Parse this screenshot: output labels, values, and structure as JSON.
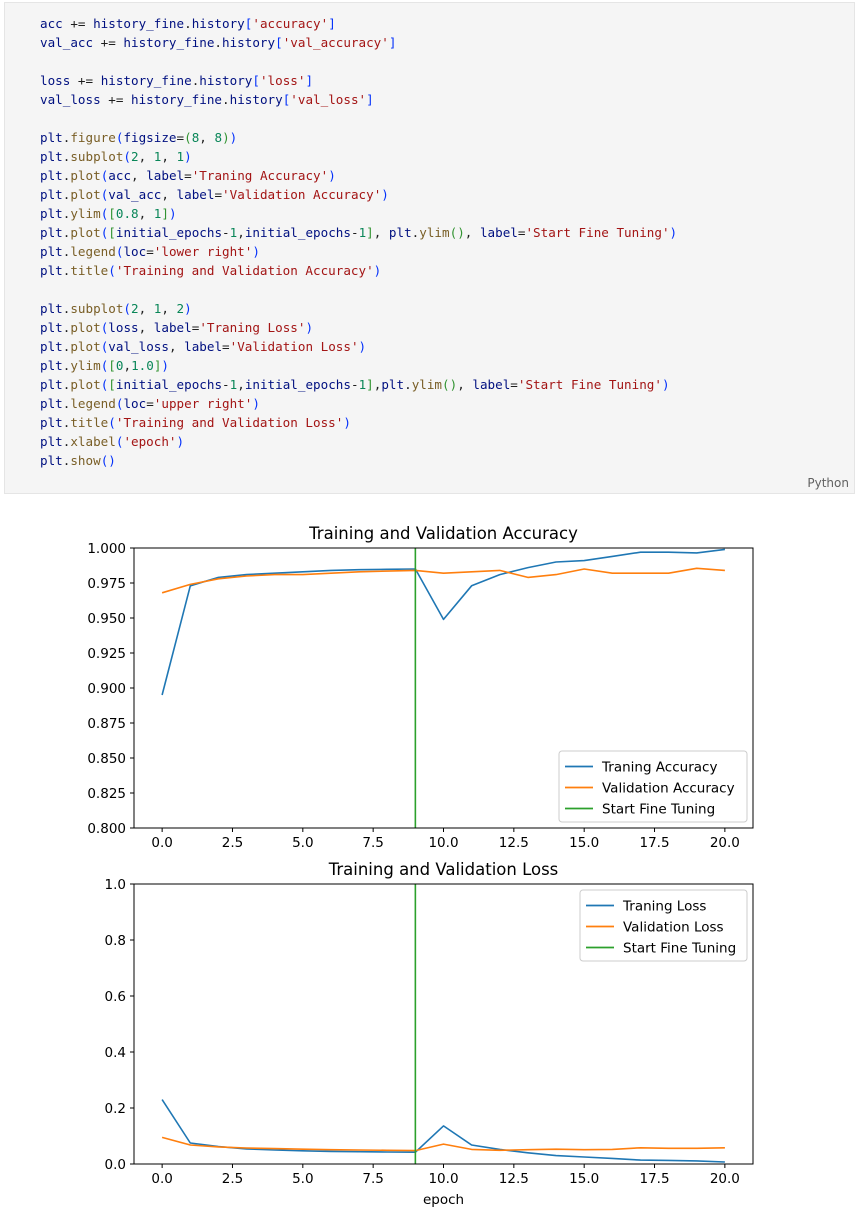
{
  "code_cell": {
    "language": "Python",
    "lines": [
      [
        [
          "var",
          "acc"
        ],
        [
          "op",
          " += "
        ],
        [
          "var",
          "history_fine"
        ],
        [
          "op",
          "."
        ],
        [
          "var",
          "history"
        ],
        [
          "br",
          "["
        ],
        [
          "str",
          "'accuracy'"
        ],
        [
          "br",
          "]"
        ]
      ],
      [
        [
          "var",
          "val_acc"
        ],
        [
          "op",
          " += "
        ],
        [
          "var",
          "history_fine"
        ],
        [
          "op",
          "."
        ],
        [
          "var",
          "history"
        ],
        [
          "br",
          "["
        ],
        [
          "str",
          "'val_accuracy'"
        ],
        [
          "br",
          "]"
        ]
      ],
      [],
      [
        [
          "var",
          "loss"
        ],
        [
          "op",
          " += "
        ],
        [
          "var",
          "history_fine"
        ],
        [
          "op",
          "."
        ],
        [
          "var",
          "history"
        ],
        [
          "br",
          "["
        ],
        [
          "str",
          "'loss'"
        ],
        [
          "br",
          "]"
        ]
      ],
      [
        [
          "var",
          "val_loss"
        ],
        [
          "op",
          " += "
        ],
        [
          "var",
          "history_fine"
        ],
        [
          "op",
          "."
        ],
        [
          "var",
          "history"
        ],
        [
          "br",
          "["
        ],
        [
          "str",
          "'val_loss'"
        ],
        [
          "br",
          "]"
        ]
      ],
      [],
      [
        [
          "var",
          "plt"
        ],
        [
          "op",
          "."
        ],
        [
          "fn",
          "figure"
        ],
        [
          "br",
          "("
        ],
        [
          "var",
          "figsize"
        ],
        [
          "op",
          "="
        ],
        [
          "br2",
          "("
        ],
        [
          "num",
          "8"
        ],
        [
          "op",
          ", "
        ],
        [
          "num",
          "8"
        ],
        [
          "br2",
          ")"
        ],
        [
          "br",
          ")"
        ]
      ],
      [
        [
          "var",
          "plt"
        ],
        [
          "op",
          "."
        ],
        [
          "fn",
          "subplot"
        ],
        [
          "br",
          "("
        ],
        [
          "num",
          "2"
        ],
        [
          "op",
          ", "
        ],
        [
          "num",
          "1"
        ],
        [
          "op",
          ", "
        ],
        [
          "num",
          "1"
        ],
        [
          "br",
          ")"
        ]
      ],
      [
        [
          "var",
          "plt"
        ],
        [
          "op",
          "."
        ],
        [
          "fn",
          "plot"
        ],
        [
          "br",
          "("
        ],
        [
          "var",
          "acc"
        ],
        [
          "op",
          ", "
        ],
        [
          "var",
          "label"
        ],
        [
          "op",
          "="
        ],
        [
          "str",
          "'Traning Accuracy'"
        ],
        [
          "br",
          ")"
        ]
      ],
      [
        [
          "var",
          "plt"
        ],
        [
          "op",
          "."
        ],
        [
          "fn",
          "plot"
        ],
        [
          "br",
          "("
        ],
        [
          "var",
          "val_acc"
        ],
        [
          "op",
          ", "
        ],
        [
          "var",
          "label"
        ],
        [
          "op",
          "="
        ],
        [
          "str",
          "'Validation Accuracy'"
        ],
        [
          "br",
          ")"
        ]
      ],
      [
        [
          "var",
          "plt"
        ],
        [
          "op",
          "."
        ],
        [
          "fn",
          "ylim"
        ],
        [
          "br",
          "("
        ],
        [
          "br2",
          "["
        ],
        [
          "num",
          "0.8"
        ],
        [
          "op",
          ", "
        ],
        [
          "num",
          "1"
        ],
        [
          "br2",
          "]"
        ],
        [
          "br",
          ")"
        ]
      ],
      [
        [
          "var",
          "plt"
        ],
        [
          "op",
          "."
        ],
        [
          "fn",
          "plot"
        ],
        [
          "br",
          "("
        ],
        [
          "br2",
          "["
        ],
        [
          "var",
          "initial_epochs"
        ],
        [
          "op",
          "-"
        ],
        [
          "num",
          "1"
        ],
        [
          "op",
          ","
        ],
        [
          "var",
          "initial_epochs"
        ],
        [
          "op",
          "-"
        ],
        [
          "num",
          "1"
        ],
        [
          "br2",
          "]"
        ],
        [
          "op",
          ", "
        ],
        [
          "var",
          "plt"
        ],
        [
          "op",
          "."
        ],
        [
          "fn",
          "ylim"
        ],
        [
          "br2",
          "()"
        ],
        [
          "op",
          ", "
        ],
        [
          "var",
          "label"
        ],
        [
          "op",
          "="
        ],
        [
          "str",
          "'Start Fine Tuning'"
        ],
        [
          "br",
          ")"
        ]
      ],
      [
        [
          "var",
          "plt"
        ],
        [
          "op",
          "."
        ],
        [
          "fn",
          "legend"
        ],
        [
          "br",
          "("
        ],
        [
          "var",
          "loc"
        ],
        [
          "op",
          "="
        ],
        [
          "str",
          "'lower right'"
        ],
        [
          "br",
          ")"
        ]
      ],
      [
        [
          "var",
          "plt"
        ],
        [
          "op",
          "."
        ],
        [
          "fn",
          "title"
        ],
        [
          "br",
          "("
        ],
        [
          "str",
          "'Training and Validation Accuracy'"
        ],
        [
          "br",
          ")"
        ]
      ],
      [],
      [
        [
          "var",
          "plt"
        ],
        [
          "op",
          "."
        ],
        [
          "fn",
          "subplot"
        ],
        [
          "br",
          "("
        ],
        [
          "num",
          "2"
        ],
        [
          "op",
          ", "
        ],
        [
          "num",
          "1"
        ],
        [
          "op",
          ", "
        ],
        [
          "num",
          "2"
        ],
        [
          "br",
          ")"
        ]
      ],
      [
        [
          "var",
          "plt"
        ],
        [
          "op",
          "."
        ],
        [
          "fn",
          "plot"
        ],
        [
          "br",
          "("
        ],
        [
          "var",
          "loss"
        ],
        [
          "op",
          ", "
        ],
        [
          "var",
          "label"
        ],
        [
          "op",
          "="
        ],
        [
          "str",
          "'Traning Loss'"
        ],
        [
          "br",
          ")"
        ]
      ],
      [
        [
          "var",
          "plt"
        ],
        [
          "op",
          "."
        ],
        [
          "fn",
          "plot"
        ],
        [
          "br",
          "("
        ],
        [
          "var",
          "val_loss"
        ],
        [
          "op",
          ", "
        ],
        [
          "var",
          "label"
        ],
        [
          "op",
          "="
        ],
        [
          "str",
          "'Validation Loss'"
        ],
        [
          "br",
          ")"
        ]
      ],
      [
        [
          "var",
          "plt"
        ],
        [
          "op",
          "."
        ],
        [
          "fn",
          "ylim"
        ],
        [
          "br",
          "("
        ],
        [
          "br2",
          "["
        ],
        [
          "num",
          "0"
        ],
        [
          "op",
          ","
        ],
        [
          "num",
          "1.0"
        ],
        [
          "br2",
          "]"
        ],
        [
          "br",
          ")"
        ]
      ],
      [
        [
          "var",
          "plt"
        ],
        [
          "op",
          "."
        ],
        [
          "fn",
          "plot"
        ],
        [
          "br",
          "("
        ],
        [
          "br2",
          "["
        ],
        [
          "var",
          "initial_epochs"
        ],
        [
          "op",
          "-"
        ],
        [
          "num",
          "1"
        ],
        [
          "op",
          ","
        ],
        [
          "var",
          "initial_epochs"
        ],
        [
          "op",
          "-"
        ],
        [
          "num",
          "1"
        ],
        [
          "br2",
          "]"
        ],
        [
          "op",
          ","
        ],
        [
          "var",
          "plt"
        ],
        [
          "op",
          "."
        ],
        [
          "fn",
          "ylim"
        ],
        [
          "br2",
          "()"
        ],
        [
          "op",
          ", "
        ],
        [
          "var",
          "label"
        ],
        [
          "op",
          "="
        ],
        [
          "str",
          "'Start Fine Tuning'"
        ],
        [
          "br",
          ")"
        ]
      ],
      [
        [
          "var",
          "plt"
        ],
        [
          "op",
          "."
        ],
        [
          "fn",
          "legend"
        ],
        [
          "br",
          "("
        ],
        [
          "var",
          "loc"
        ],
        [
          "op",
          "="
        ],
        [
          "str",
          "'upper right'"
        ],
        [
          "br",
          ")"
        ]
      ],
      [
        [
          "var",
          "plt"
        ],
        [
          "op",
          "."
        ],
        [
          "fn",
          "title"
        ],
        [
          "br",
          "("
        ],
        [
          "str",
          "'Training and Validation Loss'"
        ],
        [
          "br",
          ")"
        ]
      ],
      [
        [
          "var",
          "plt"
        ],
        [
          "op",
          "."
        ],
        [
          "fn",
          "xlabel"
        ],
        [
          "br",
          "("
        ],
        [
          "str",
          "'epoch'"
        ],
        [
          "br",
          ")"
        ]
      ],
      [
        [
          "var",
          "plt"
        ],
        [
          "op",
          "."
        ],
        [
          "fn",
          "show"
        ],
        [
          "br",
          "()"
        ]
      ]
    ]
  },
  "colors": {
    "train": "#1f77b4",
    "val": "#ff7f0e",
    "fine_tune": "#2ca02c"
  },
  "chart_data": [
    {
      "type": "line",
      "title": "Training and Validation Accuracy",
      "xlabel": "",
      "ylabel": "",
      "xlim": [
        -1,
        21
      ],
      "ylim": [
        0.8,
        1.0
      ],
      "xticks": [
        0.0,
        2.5,
        5.0,
        7.5,
        10.0,
        12.5,
        15.0,
        17.5,
        20.0
      ],
      "xtick_labels": [
        "0.0",
        "2.5",
        "5.0",
        "7.5",
        "10.0",
        "12.5",
        "15.0",
        "17.5",
        "20.0"
      ],
      "yticks": [
        0.8,
        0.825,
        0.85,
        0.875,
        0.9,
        0.925,
        0.95,
        0.975,
        1.0
      ],
      "ytick_labels": [
        "0.800",
        "0.825",
        "0.850",
        "0.875",
        "0.900",
        "0.925",
        "0.950",
        "0.975",
        "1.000"
      ],
      "legend_loc": "lower right",
      "x": [
        0,
        1,
        2,
        3,
        4,
        5,
        6,
        7,
        8,
        9,
        10,
        11,
        12,
        13,
        14,
        15,
        16,
        17,
        18,
        19,
        20
      ],
      "series": [
        {
          "name": "Traning Accuracy",
          "color_key": "train",
          "values": [
            0.895,
            0.973,
            0.979,
            0.981,
            0.982,
            0.983,
            0.984,
            0.9845,
            0.9848,
            0.985,
            0.949,
            0.973,
            0.981,
            0.986,
            0.99,
            0.991,
            0.994,
            0.997,
            0.997,
            0.9965,
            0.999
          ]
        },
        {
          "name": "Validation Accuracy",
          "color_key": "val",
          "values": [
            0.968,
            0.974,
            0.978,
            0.98,
            0.981,
            0.981,
            0.982,
            0.983,
            0.9835,
            0.984,
            0.982,
            0.983,
            0.984,
            0.979,
            0.981,
            0.985,
            0.982,
            0.982,
            0.982,
            0.9855,
            0.984
          ]
        },
        {
          "name": "Start Fine Tuning",
          "color_key": "fine_tune",
          "vertical_x": 9
        }
      ]
    },
    {
      "type": "line",
      "title": "Training and Validation Loss",
      "xlabel": "epoch",
      "ylabel": "",
      "xlim": [
        -1,
        21
      ],
      "ylim": [
        0,
        1.0
      ],
      "xticks": [
        0.0,
        2.5,
        5.0,
        7.5,
        10.0,
        12.5,
        15.0,
        17.5,
        20.0
      ],
      "xtick_labels": [
        "0.0",
        "2.5",
        "5.0",
        "7.5",
        "10.0",
        "12.5",
        "15.0",
        "17.5",
        "20.0"
      ],
      "yticks": [
        0.0,
        0.2,
        0.4,
        0.6,
        0.8,
        1.0
      ],
      "ytick_labels": [
        "0.0",
        "0.2",
        "0.4",
        "0.6",
        "0.8",
        "1.0"
      ],
      "legend_loc": "upper right",
      "x": [
        0,
        1,
        2,
        3,
        4,
        5,
        6,
        7,
        8,
        9,
        10,
        11,
        12,
        13,
        14,
        15,
        16,
        17,
        18,
        19,
        20
      ],
      "series": [
        {
          "name": "Traning Loss",
          "color_key": "train",
          "values": [
            0.23,
            0.075,
            0.062,
            0.054,
            0.05,
            0.047,
            0.045,
            0.044,
            0.043,
            0.042,
            0.136,
            0.068,
            0.052,
            0.04,
            0.03,
            0.025,
            0.02,
            0.014,
            0.013,
            0.011,
            0.007
          ]
        },
        {
          "name": "Validation Loss",
          "color_key": "val",
          "values": [
            0.095,
            0.068,
            0.061,
            0.057,
            0.055,
            0.053,
            0.051,
            0.05,
            0.049,
            0.048,
            0.071,
            0.052,
            0.049,
            0.051,
            0.053,
            0.051,
            0.052,
            0.058,
            0.056,
            0.056,
            0.058
          ]
        },
        {
          "name": "Start Fine Tuning",
          "color_key": "fine_tune",
          "vertical_x": 9
        }
      ]
    }
  ]
}
